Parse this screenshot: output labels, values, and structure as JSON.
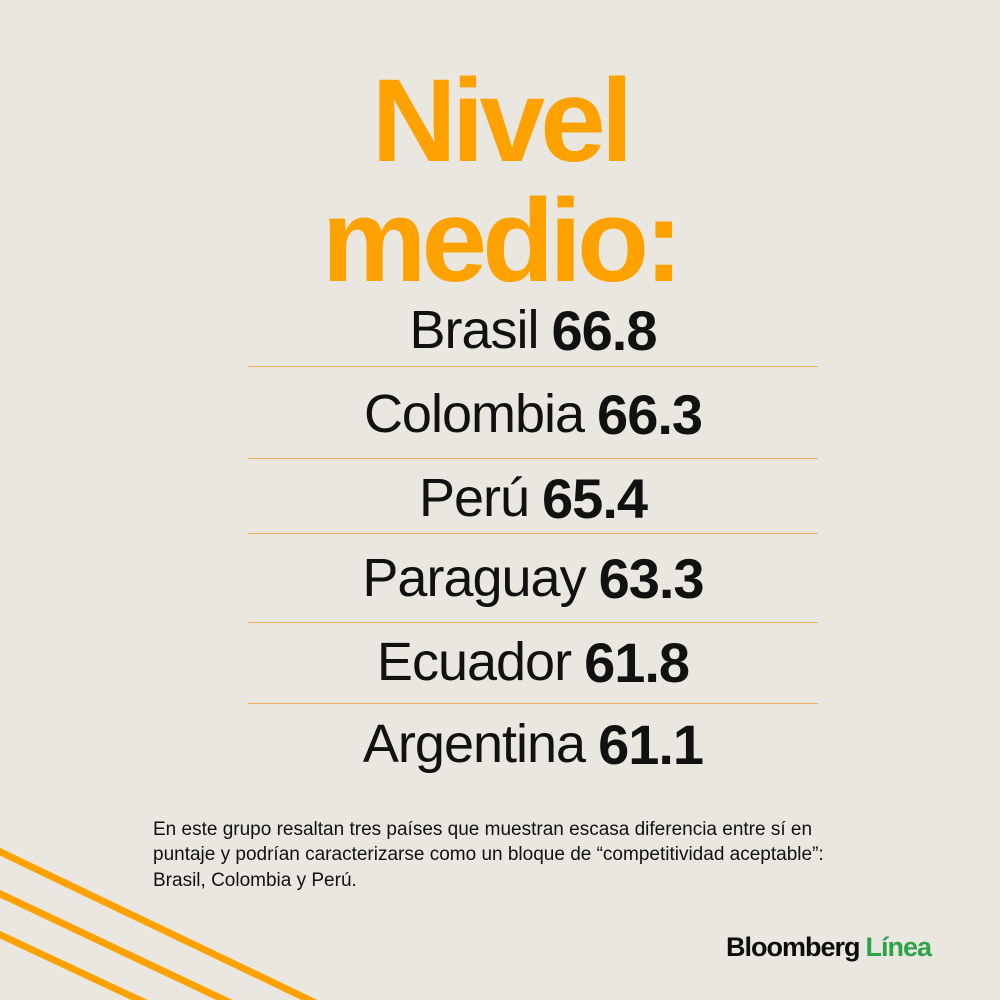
{
  "title": {
    "line1": "Nivel",
    "line2": "medio:"
  },
  "rows": [
    {
      "country": "Brasil",
      "value": "66.8"
    },
    {
      "country": "Colombia",
      "value": "66.3"
    },
    {
      "country": "Perú",
      "value": "65.4"
    },
    {
      "country": "Paraguay",
      "value": "63.3"
    },
    {
      "country": "Ecuador",
      "value": "61.8"
    },
    {
      "country": "Argentina",
      "value": "61.1"
    }
  ],
  "note": "En este grupo resaltan tres países que muestran escasa diferencia entre sí en puntaje y podrían caracterizarse como un bloque de “competitividad aceptable”: Brasil, Colombia y Perú.",
  "brand": {
    "part1": "Bloomberg",
    "part2": "Línea"
  },
  "colors": {
    "background": "#e9e7df",
    "accent": "#ffa200",
    "brand_green": "#2ea24a",
    "text": "#111111"
  },
  "icons": [
    "decorative-stripes"
  ]
}
